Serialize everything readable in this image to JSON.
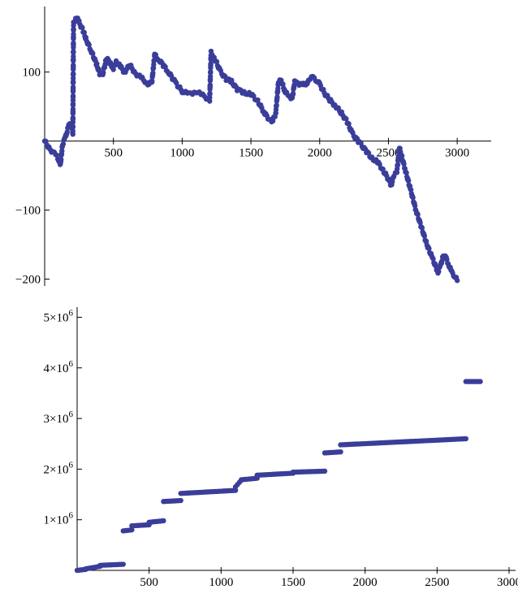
{
  "chart_data": [
    {
      "type": "scatter",
      "xlabel": "",
      "ylabel": "",
      "xlim": [
        0,
        3200
      ],
      "ylim": [
        -210,
        195
      ],
      "x_ticks": [
        500,
        1000,
        1500,
        2000,
        2500,
        3000
      ],
      "y_ticks": [
        100,
        -100,
        -200
      ],
      "x_tick_labels": [
        "500",
        "1000",
        "1500",
        "2000",
        "2500",
        "3000"
      ],
      "y_tick_labels": [
        "100",
        "−100",
        "−200"
      ],
      "point_color": "#3a3d99",
      "trace": [
        [
          0,
          0
        ],
        [
          40,
          -12
        ],
        [
          80,
          -20
        ],
        [
          110,
          -30
        ],
        [
          115,
          -34
        ],
        [
          130,
          -5
        ],
        [
          150,
          5
        ],
        [
          160,
          12
        ],
        [
          175,
          22
        ],
        [
          190,
          26
        ],
        [
          200,
          18
        ],
        [
          205,
          12
        ],
        [
          210,
          170
        ],
        [
          230,
          180
        ],
        [
          250,
          172
        ],
        [
          280,
          160
        ],
        [
          300,
          148
        ],
        [
          340,
          130
        ],
        [
          380,
          110
        ],
        [
          400,
          98
        ],
        [
          420,
          95
        ],
        [
          450,
          120
        ],
        [
          480,
          112
        ],
        [
          500,
          105
        ],
        [
          520,
          115
        ],
        [
          550,
          108
        ],
        [
          580,
          100
        ],
        [
          620,
          110
        ],
        [
          660,
          98
        ],
        [
          700,
          92
        ],
        [
          740,
          85
        ],
        [
          760,
          82
        ],
        [
          780,
          86
        ],
        [
          800,
          125
        ],
        [
          830,
          118
        ],
        [
          870,
          108
        ],
        [
          900,
          100
        ],
        [
          950,
          85
        ],
        [
          1000,
          72
        ],
        [
          1050,
          68
        ],
        [
          1100,
          72
        ],
        [
          1150,
          66
        ],
        [
          1200,
          60
        ],
        [
          1210,
          128
        ],
        [
          1240,
          118
        ],
        [
          1280,
          100
        ],
        [
          1320,
          90
        ],
        [
          1360,
          86
        ],
        [
          1400,
          75
        ],
        [
          1450,
          70
        ],
        [
          1500,
          68
        ],
        [
          1550,
          58
        ],
        [
          1600,
          40
        ],
        [
          1640,
          30
        ],
        [
          1660,
          30
        ],
        [
          1680,
          40
        ],
        [
          1700,
          85
        ],
        [
          1720,
          88
        ],
        [
          1750,
          70
        ],
        [
          1780,
          65
        ],
        [
          1800,
          62
        ],
        [
          1820,
          88
        ],
        [
          1850,
          80
        ],
        [
          1880,
          85
        ],
        [
          1900,
          80
        ],
        [
          1920,
          90
        ],
        [
          1950,
          92
        ],
        [
          1980,
          88
        ],
        [
          2000,
          82
        ],
        [
          2040,
          68
        ],
        [
          2080,
          58
        ],
        [
          2120,
          50
        ],
        [
          2160,
          40
        ],
        [
          2200,
          28
        ],
        [
          2240,
          10
        ],
        [
          2280,
          0
        ],
        [
          2300,
          -5
        ],
        [
          2340,
          -15
        ],
        [
          2380,
          -25
        ],
        [
          2420,
          -30
        ],
        [
          2460,
          -42
        ],
        [
          2500,
          -55
        ],
        [
          2520,
          -64
        ],
        [
          2540,
          -50
        ],
        [
          2560,
          -46
        ],
        [
          2580,
          -10
        ],
        [
          2620,
          -40
        ],
        [
          2660,
          -70
        ],
        [
          2700,
          -100
        ],
        [
          2740,
          -125
        ],
        [
          2780,
          -150
        ],
        [
          2820,
          -170
        ],
        [
          2860,
          -190
        ],
        [
          2880,
          -180
        ],
        [
          2900,
          -165
        ],
        [
          2920,
          -170
        ],
        [
          2940,
          -180
        ],
        [
          2960,
          -190
        ],
        [
          2980,
          -195
        ],
        [
          3000,
          -202
        ]
      ]
    },
    {
      "type": "scatter",
      "xlabel": "",
      "ylabel": "",
      "xlim": [
        0,
        3000
      ],
      "ylim": [
        0,
        5200000
      ],
      "x_ticks": [
        500,
        1000,
        1500,
        2000,
        2500,
        3000
      ],
      "y_ticks": [
        1000000,
        2000000,
        3000000,
        4000000,
        5000000
      ],
      "x_tick_labels": [
        "500",
        "1000",
        "1500",
        "2000",
        "2500",
        "3000"
      ],
      "y_tick_labels": [
        {
          "mantissa": "1",
          "exponent": "6"
        },
        {
          "mantissa": "2",
          "exponent": "6"
        },
        {
          "mantissa": "3",
          "exponent": "6"
        },
        {
          "mantissa": "4",
          "exponent": "6"
        },
        {
          "mantissa": "5",
          "exponent": "6"
        }
      ],
      "point_color": "#3a3d99",
      "segments": [
        {
          "x0": 0,
          "x1": 60,
          "y0": 0,
          "y1": 20000
        },
        {
          "x0": 60,
          "x1": 160,
          "y0": 30000,
          "y1": 80000
        },
        {
          "x0": 160,
          "x1": 320,
          "y0": 100000,
          "y1": 120000
        },
        {
          "x0": 320,
          "x1": 380,
          "y0": 780000,
          "y1": 800000
        },
        {
          "x0": 380,
          "x1": 500,
          "y0": 880000,
          "y1": 900000
        },
        {
          "x0": 500,
          "x1": 600,
          "y0": 950000,
          "y1": 980000
        },
        {
          "x0": 600,
          "x1": 720,
          "y0": 1360000,
          "y1": 1380000
        },
        {
          "x0": 720,
          "x1": 1100,
          "y0": 1520000,
          "y1": 1580000
        },
        {
          "x0": 1100,
          "x1": 1140,
          "y0": 1650000,
          "y1": 1780000
        },
        {
          "x0": 1140,
          "x1": 1250,
          "y0": 1790000,
          "y1": 1820000
        },
        {
          "x0": 1250,
          "x1": 1500,
          "y0": 1880000,
          "y1": 1920000
        },
        {
          "x0": 1500,
          "x1": 1720,
          "y0": 1940000,
          "y1": 1960000
        },
        {
          "x0": 1720,
          "x1": 1830,
          "y0": 2320000,
          "y1": 2340000
        },
        {
          "x0": 1830,
          "x1": 2700,
          "y0": 2480000,
          "y1": 2600000
        },
        {
          "x0": 2700,
          "x1": 2800,
          "y0": 3730000,
          "y1": 3730000
        }
      ]
    }
  ]
}
